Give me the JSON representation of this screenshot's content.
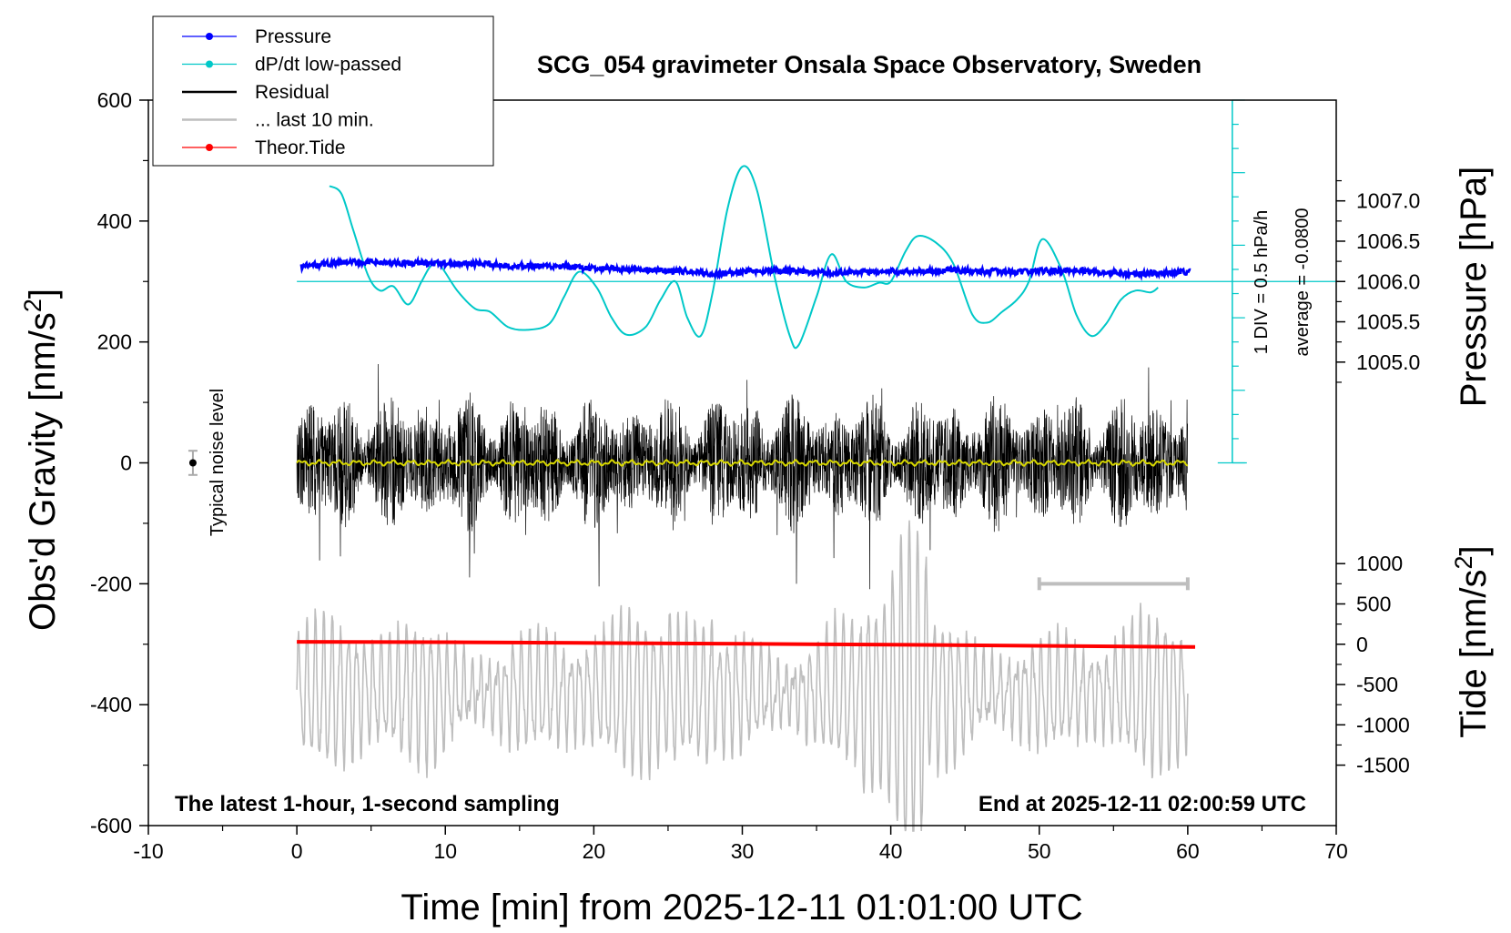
{
  "chart_data": {
    "type": "line",
    "title": "SCG_054 gravimeter Onsala Space Observatory, Sweden",
    "xlabel": "Time [min] from 2025-12-11 01:01:00 UTC",
    "ylabel_left": "Obs'd Gravity [nm/s",
    "ylabel_right_top": "Pressure [hPa]",
    "ylabel_right_bottom": "Tide [nm/s",
    "superscript": "2",
    "xlim": [
      -10,
      70
    ],
    "ylim": [
      -600,
      600
    ],
    "x_ticks": [
      "-10",
      "0",
      "10",
      "20",
      "30",
      "40",
      "50",
      "60",
      "70"
    ],
    "y_ticks": [
      "600",
      "400",
      "200",
      "0",
      "-200",
      "-400",
      "-600"
    ],
    "pressure_ticks": [
      "1007.0",
      "1006.5",
      "1006.0",
      "1005.5",
      "1005.0"
    ],
    "tide_ticks": [
      "1000",
      "500",
      "0",
      "-500",
      "-1000",
      "-1500"
    ],
    "legend": [
      {
        "label": "Pressure",
        "color": "#0000ff",
        "marker": true
      },
      {
        "label": "dP/dt low-passed",
        "color": "#00c8c8",
        "marker": true
      },
      {
        "label": "Residual",
        "color": "#000000",
        "marker": false
      },
      {
        "label": "... last 10 min.",
        "color": "#bebebe",
        "marker": false
      },
      {
        "label": "Theor.Tide",
        "color": "#ff0000",
        "marker": true
      }
    ],
    "annotations": {
      "noise": "Typical noise level",
      "div": "1 DIV = 0.5 hPa/h",
      "average": "average = -0.0800",
      "bottom_left": "The latest 1-hour, 1-second sampling",
      "bottom_right": "End at 2025-12-11 02:00:59 UTC"
    },
    "series": [
      {
        "name": "Pressure",
        "unit": "hPa",
        "color": "#0000ff",
        "x": [
          0,
          2,
          4,
          6,
          8,
          10,
          12,
          14,
          16,
          18,
          20,
          22,
          24,
          26,
          28,
          30,
          32,
          34,
          36,
          38,
          40,
          42,
          44,
          46,
          48,
          50,
          52,
          54,
          56,
          58,
          60
        ],
        "y": [
          1006.18,
          1006.22,
          1006.24,
          1006.23,
          1006.23,
          1006.22,
          1006.22,
          1006.2,
          1006.19,
          1006.18,
          1006.16,
          1006.15,
          1006.14,
          1006.13,
          1006.09,
          1006.12,
          1006.14,
          1006.12,
          1006.11,
          1006.12,
          1006.12,
          1006.13,
          1006.14,
          1006.13,
          1006.12,
          1006.13,
          1006.14,
          1006.12,
          1006.1,
          1006.1,
          1006.12
        ]
      },
      {
        "name": "dP/dt low-passed",
        "unit": "nm/s2 display",
        "color": "#00c8c8",
        "x": [
          2.2,
          3.0,
          3.8,
          4.8,
          5.6,
          6.5,
          7.5,
          8.4,
          9.0,
          9.6,
          10.8,
          12.0,
          13.0,
          14.2,
          15.5,
          17.0,
          18.0,
          19.0,
          20.2,
          21.2,
          22.2,
          23.5,
          24.5,
          25.5,
          26.3,
          27.2,
          28.0,
          29.0,
          30.0,
          31.0,
          32.2,
          33.2,
          33.8,
          35.0,
          36.0,
          37.0,
          38.2,
          39.2,
          40.0,
          41.0,
          41.8,
          43.0,
          44.2,
          45.5,
          46.5,
          47.5,
          48.5,
          49.3,
          50.2,
          51.5,
          52.5,
          53.5,
          54.5,
          55.5,
          56.5,
          57.5,
          58.0
        ],
        "y": [
          458,
          445,
          385,
          310,
          285,
          292,
          262,
          300,
          325,
          328,
          285,
          255,
          250,
          225,
          220,
          230,
          275,
          316,
          290,
          240,
          212,
          225,
          270,
          300,
          240,
          210,
          282,
          420,
          490,
          450,
          305,
          210,
          195,
          275,
          345,
          300,
          290,
          298,
          300,
          350,
          375,
          365,
          330,
          245,
          232,
          250,
          270,
          300,
          370,
          320,
          245,
          210,
          230,
          270,
          285,
          282,
          290
        ]
      },
      {
        "name": "Residual",
        "unit": "nm/s2",
        "color": "#000000",
        "x": [
          0,
          60
        ],
        "y": [
          0,
          0
        ]
      },
      {
        "name": "... last 10 min.",
        "unit": "nm/s2",
        "color": "#bebebe",
        "x": [
          50,
          60
        ],
        "y": [
          -200,
          -200
        ]
      },
      {
        "name": "Theor.Tide",
        "unit": "nm/s2",
        "color": "#ff0000",
        "x": [
          0,
          10,
          20,
          30,
          40,
          50,
          60.5
        ],
        "y": [
          30,
          25,
          15,
          5,
          -5,
          -20,
          -35
        ]
      }
    ]
  }
}
